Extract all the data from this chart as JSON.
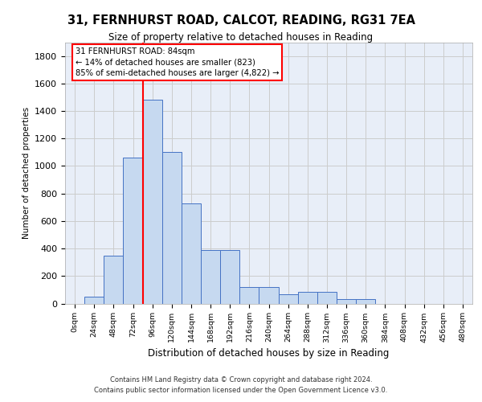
{
  "title_line1": "31, FERNHURST ROAD, CALCOT, READING, RG31 7EA",
  "title_line2": "Size of property relative to detached houses in Reading",
  "xlabel": "Distribution of detached houses by size in Reading",
  "ylabel": "Number of detached properties",
  "footer_line1": "Contains HM Land Registry data © Crown copyright and database right 2024.",
  "footer_line2": "Contains public sector information licensed under the Open Government Licence v3.0.",
  "bar_labels": [
    "0sqm",
    "24sqm",
    "48sqm",
    "72sqm",
    "96sqm",
    "120sqm",
    "144sqm",
    "168sqm",
    "192sqm",
    "216sqm",
    "240sqm",
    "264sqm",
    "288sqm",
    "312sqm",
    "336sqm",
    "360sqm",
    "384sqm",
    "408sqm",
    "432sqm",
    "456sqm",
    "480sqm"
  ],
  "bar_values": [
    0,
    50,
    350,
    1060,
    1480,
    1100,
    730,
    390,
    390,
    120,
    120,
    70,
    85,
    85,
    30,
    30,
    0,
    0,
    0,
    0,
    0
  ],
  "bar_color": "#c6d9f0",
  "bar_edge_color": "#4472c4",
  "annotation_line1": "31 FERNHURST ROAD: 84sqm",
  "annotation_line2": "← 14% of detached houses are smaller (823)",
  "annotation_line3": "85% of semi-detached houses are larger (4,822) →",
  "property_vline_x": 3.5,
  "ylim": [
    0,
    1900
  ],
  "yticks": [
    0,
    200,
    400,
    600,
    800,
    1000,
    1200,
    1400,
    1600,
    1800
  ],
  "grid_color": "#cccccc",
  "bg_color": "#e8eef8"
}
